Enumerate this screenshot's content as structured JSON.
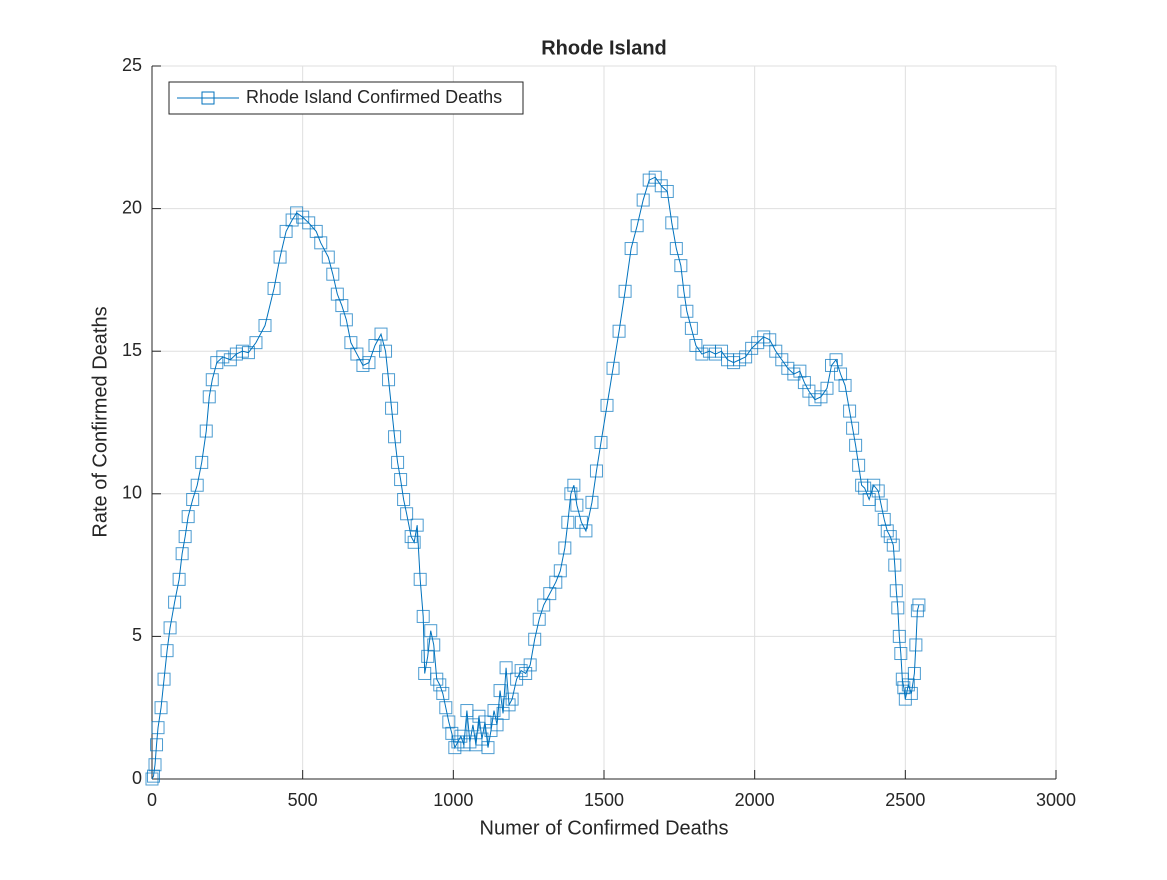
{
  "chart_data": {
    "type": "line",
    "title": "Rhode Island",
    "x_label": "Numer of Confirmed Deaths",
    "y_label": "Rate of Confirmed Deaths",
    "x": [
      0,
      5,
      10,
      15,
      20,
      30,
      40,
      50,
      60,
      75,
      90,
      100,
      110,
      120,
      135,
      150,
      165,
      180,
      190,
      200,
      215,
      235,
      260,
      280,
      300,
      320,
      345,
      375,
      405,
      425,
      445,
      465,
      480,
      500,
      520,
      545,
      560,
      585,
      600,
      615,
      630,
      645,
      660,
      680,
      700,
      720,
      740,
      760,
      775,
      785,
      795,
      805,
      815,
      825,
      835,
      845,
      860,
      870,
      880,
      890,
      900,
      905,
      915,
      925,
      935,
      945,
      955,
      965,
      975,
      985,
      995,
      1005,
      1015,
      1025,
      1035,
      1045,
      1055,
      1065,
      1075,
      1085,
      1095,
      1105,
      1115,
      1125,
      1135,
      1145,
      1155,
      1165,
      1175,
      1185,
      1195,
      1210,
      1225,
      1240,
      1255,
      1270,
      1285,
      1300,
      1320,
      1340,
      1355,
      1370,
      1380,
      1390,
      1400,
      1410,
      1425,
      1440,
      1460,
      1475,
      1490,
      1510,
      1530,
      1550,
      1570,
      1590,
      1610,
      1630,
      1650,
      1670,
      1690,
      1710,
      1725,
      1740,
      1755,
      1765,
      1775,
      1790,
      1805,
      1825,
      1850,
      1870,
      1890,
      1910,
      1930,
      1950,
      1970,
      1990,
      2010,
      2030,
      2050,
      2070,
      2090,
      2110,
      2130,
      2150,
      2165,
      2180,
      2200,
      2220,
      2240,
      2255,
      2270,
      2285,
      2300,
      2315,
      2325,
      2335,
      2345,
      2355,
      2365,
      2380,
      2395,
      2410,
      2420,
      2430,
      2440,
      2450,
      2460,
      2465,
      2470,
      2475,
      2480,
      2485,
      2490,
      2495,
      2500,
      2510,
      2520,
      2530,
      2535,
      2540,
      2545
    ],
    "series": [
      {
        "name": "Rhode Island Confirmed Deaths",
        "color": "#0072bd",
        "values": [
          0,
          0.1,
          0.5,
          1.2,
          1.8,
          2.5,
          3.5,
          4.5,
          5.3,
          6.2,
          7.0,
          7.9,
          8.5,
          9.2,
          9.8,
          10.3,
          11.1,
          12.2,
          13.4,
          14.0,
          14.6,
          14.8,
          14.7,
          14.9,
          15.0,
          14.95,
          15.3,
          15.9,
          17.2,
          18.3,
          19.2,
          19.6,
          19.85,
          19.7,
          19.5,
          19.2,
          18.8,
          18.3,
          17.7,
          17.0,
          16.6,
          16.1,
          15.3,
          14.9,
          14.5,
          14.6,
          15.2,
          15.6,
          15.0,
          14.0,
          13.0,
          12.0,
          11.1,
          10.5,
          9.8,
          9.3,
          8.5,
          8.3,
          8.9,
          7.0,
          5.7,
          3.7,
          4.3,
          5.2,
          4.7,
          3.5,
          3.3,
          3.0,
          2.5,
          2.0,
          1.6,
          1.1,
          1.3,
          1.5,
          1.2,
          2.4,
          1.3,
          1.9,
          1.2,
          2.2,
          1.4,
          2.0,
          1.1,
          1.7,
          2.4,
          1.9,
          3.1,
          2.3,
          3.9,
          2.6,
          2.8,
          3.5,
          3.8,
          3.7,
          4.0,
          4.9,
          5.6,
          6.1,
          6.5,
          6.9,
          7.3,
          8.1,
          9.0,
          10.0,
          10.3,
          9.6,
          9.0,
          8.7,
          9.7,
          10.8,
          11.8,
          13.1,
          14.4,
          15.7,
          17.1,
          18.6,
          19.4,
          20.3,
          21.0,
          21.1,
          20.8,
          20.6,
          19.5,
          18.6,
          18.0,
          17.1,
          16.4,
          15.8,
          15.2,
          14.9,
          15.0,
          14.9,
          15.0,
          14.7,
          14.6,
          14.7,
          14.8,
          15.1,
          15.3,
          15.5,
          15.4,
          15.0,
          14.7,
          14.4,
          14.2,
          14.3,
          13.9,
          13.6,
          13.3,
          13.4,
          13.7,
          14.5,
          14.7,
          14.2,
          13.8,
          12.9,
          12.3,
          11.7,
          11.0,
          10.3,
          10.2,
          9.8,
          10.3,
          10.1,
          9.6,
          9.1,
          8.7,
          8.5,
          8.2,
          7.5,
          6.6,
          6.0,
          5.0,
          4.4,
          3.5,
          3.2,
          2.8,
          3.3,
          3.0,
          3.7,
          4.7,
          5.9,
          6.1
        ]
      }
    ],
    "xlim": [
      0,
      3000
    ],
    "xticks": [
      0,
      500,
      1000,
      1500,
      2000,
      2500,
      3000
    ],
    "ylim": [
      0,
      25
    ],
    "yticks": [
      0,
      5,
      10,
      15,
      20,
      25
    ],
    "grid": true,
    "legend": "northwest"
  }
}
